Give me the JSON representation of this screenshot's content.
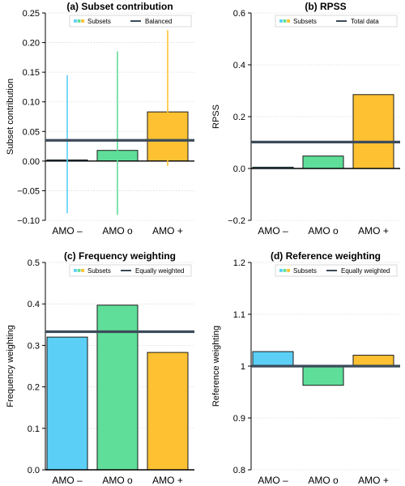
{
  "colors": {
    "amo_minus": "#5BCFF5",
    "amo_zero": "#5FDE99",
    "amo_plus": "#FDC132",
    "reference": "#3C4B5A",
    "grid": "#D9D9D9"
  },
  "chart_data": [
    {
      "type": "bar",
      "title": "(a) Subset contribution",
      "ylabel": "Subset contribution",
      "categories": [
        "AMO –",
        "AMO o",
        "AMO +"
      ],
      "values": [
        0.002,
        0.018,
        0.083
      ],
      "error_low": [
        -0.088,
        -0.091,
        -0.008
      ],
      "error_high": [
        0.145,
        0.185,
        0.221
      ],
      "ylim": [
        -0.1,
        0.25
      ],
      "yticks": [
        -0.1,
        -0.05,
        0.0,
        0.05,
        0.1,
        0.15,
        0.2,
        0.25
      ],
      "ytick_labels": [
        "−0.10",
        "−0.05",
        "0.00",
        "0.05",
        "0.10",
        "0.15",
        "0.20",
        "0.25"
      ],
      "baseline": 0,
      "reference_line": 0.035,
      "legend": {
        "subsets_label": "Subsets",
        "reference_label": "Balanced",
        "position": "top"
      },
      "grid": true
    },
    {
      "type": "bar",
      "title": "(b) RPSS",
      "ylabel": "RPSS",
      "categories": [
        "AMO –",
        "AMO o",
        "AMO +"
      ],
      "values": [
        0.005,
        0.048,
        0.285
      ],
      "ylim": [
        -0.2,
        0.6
      ],
      "yticks": [
        -0.2,
        0.0,
        0.2,
        0.4,
        0.6
      ],
      "ytick_labels": [
        "−0.2",
        "0.0",
        "0.2",
        "0.4",
        "0.6"
      ],
      "baseline": 0,
      "reference_line": 0.102,
      "legend": {
        "subsets_label": "Subsets",
        "reference_label": "Total data",
        "position": "top"
      },
      "grid": true
    },
    {
      "type": "bar",
      "title": "(c) Frequency weighting",
      "ylabel": "Frequency weighting",
      "categories": [
        "AMO –",
        "AMO o",
        "AMO +"
      ],
      "values": [
        0.32,
        0.397,
        0.283
      ],
      "ylim": [
        0.0,
        0.5
      ],
      "yticks": [
        0.0,
        0.1,
        0.2,
        0.3,
        0.4,
        0.5
      ],
      "ytick_labels": [
        "0.0",
        "0.1",
        "0.2",
        "0.3",
        "0.4",
        "0.5"
      ],
      "baseline": 0,
      "reference_line": 0.333,
      "legend": {
        "subsets_label": "Subsets",
        "reference_label": "Equally weighted",
        "position": "top"
      },
      "grid": true
    },
    {
      "type": "bar",
      "title": "(d) Reference weighting",
      "ylabel": "Reference weighting",
      "categories": [
        "AMO –",
        "AMO o",
        "AMO +"
      ],
      "values": [
        1.028,
        0.963,
        1.021
      ],
      "ylim": [
        0.8,
        1.2
      ],
      "yticks": [
        0.8,
        0.9,
        1.0,
        1.1,
        1.2
      ],
      "ytick_labels": [
        "0.8",
        "0.9",
        "1",
        "1.1",
        "1.2"
      ],
      "baseline": 1.0,
      "reference_line": 1.0,
      "legend": {
        "subsets_label": "Subsets",
        "reference_label": "Equally weighted",
        "position": "top"
      },
      "grid": true
    }
  ]
}
